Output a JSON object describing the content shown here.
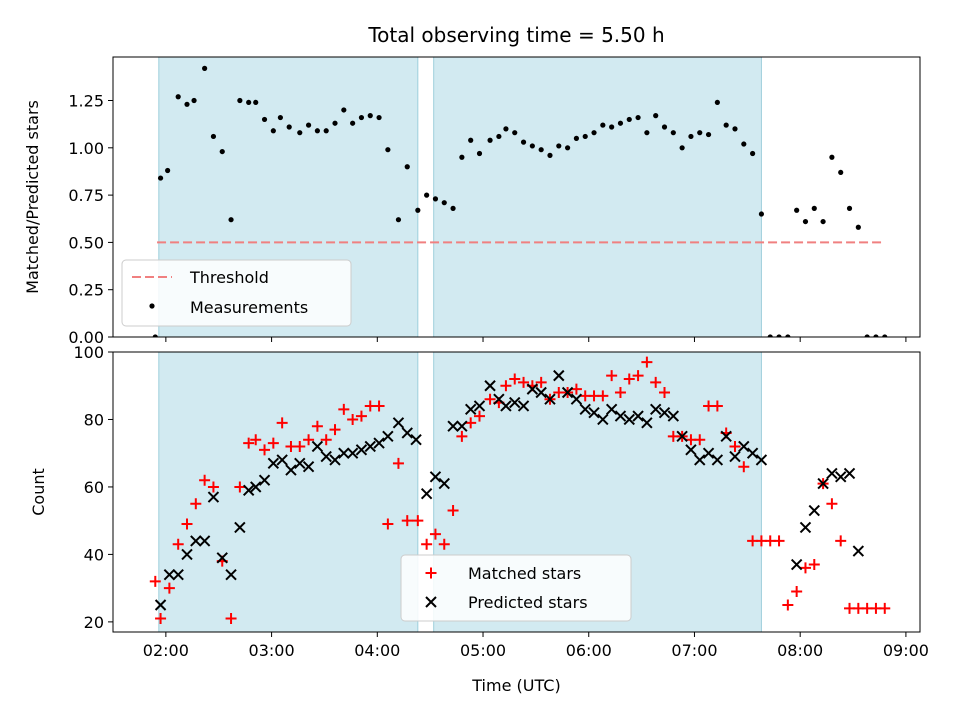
{
  "chart_data": [
    {
      "type": "scatter",
      "title": "Total observing time = 5.50 h",
      "xlabel": "",
      "ylabel": "Matched/Predicted stars",
      "ylim": [
        0,
        1.48
      ],
      "yticks": [
        "0.00",
        "0.25",
        "0.50",
        "0.75",
        "1.00",
        "1.25"
      ],
      "grid": false,
      "legend": {
        "placement": "lower-left",
        "entries": [
          "Threshold",
          "Measurements"
        ]
      },
      "shaded_intervals": [
        [
          "01:56",
          "04:23"
        ],
        [
          "04:32",
          "07:38"
        ]
      ],
      "threshold": {
        "name": "Threshold",
        "y": 0.5,
        "x_range": [
          "01:55",
          "08:47"
        ],
        "color": "#f08080",
        "style": "dashed"
      },
      "series": [
        {
          "name": "Measurements",
          "color": "#000000",
          "marker": "dot",
          "x": [
            "01:54",
            "01:57",
            "02:01",
            "02:07",
            "02:12",
            "02:16",
            "02:22",
            "02:27",
            "02:32",
            "02:37",
            "02:42",
            "02:47",
            "02:51",
            "02:56",
            "03:01",
            "03:05",
            "03:10",
            "03:16",
            "03:21",
            "03:26",
            "03:31",
            "03:36",
            "03:41",
            "03:46",
            "03:51",
            "03:56",
            "04:01",
            "04:06",
            "04:12",
            "04:17",
            "04:23",
            "04:28",
            "04:33",
            "04:38",
            "04:43",
            "04:48",
            "04:53",
            "04:58",
            "05:04",
            "05:09",
            "05:13",
            "05:18",
            "05:23",
            "05:28",
            "05:33",
            "05:38",
            "05:43",
            "05:48",
            "05:53",
            "05:58",
            "06:03",
            "06:08",
            "06:13",
            "06:18",
            "06:23",
            "06:28",
            "06:33",
            "06:38",
            "06:43",
            "06:48",
            "06:53",
            "06:58",
            "07:03",
            "07:08",
            "07:13",
            "07:18",
            "07:23",
            "07:28",
            "07:33",
            "07:38",
            "07:43",
            "07:48",
            "07:53",
            "07:58",
            "08:03",
            "08:08",
            "08:13",
            "08:18",
            "08:23",
            "08:28",
            "08:33",
            "08:38",
            "08:43",
            "08:48"
          ],
          "y": [
            0.0,
            0.84,
            0.88,
            1.27,
            1.23,
            1.25,
            1.42,
            1.06,
            0.98,
            0.62,
            1.25,
            1.24,
            1.24,
            1.15,
            1.09,
            1.16,
            1.11,
            1.08,
            1.12,
            1.09,
            1.09,
            1.13,
            1.2,
            1.13,
            1.16,
            1.17,
            1.16,
            0.99,
            0.62,
            0.9,
            0.67,
            0.75,
            0.73,
            0.71,
            0.68,
            0.95,
            1.04,
            0.97,
            1.04,
            1.06,
            1.1,
            1.08,
            1.03,
            1.01,
            0.99,
            0.96,
            1.01,
            1.0,
            1.05,
            1.06,
            1.08,
            1.12,
            1.11,
            1.13,
            1.15,
            1.16,
            1.08,
            1.17,
            1.11,
            1.08,
            1.0,
            1.06,
            1.08,
            1.07,
            1.24,
            1.12,
            1.1,
            1.02,
            0.97,
            0.65,
            0.0,
            0.0,
            0.0,
            0.67,
            0.61,
            0.68,
            0.61,
            0.95,
            0.87,
            0.68,
            0.58,
            0.0,
            0.0,
            0.0
          ]
        }
      ]
    },
    {
      "type": "scatter",
      "title": "",
      "xlabel": "Time (UTC)",
      "ylabel": "Count",
      "ylim": [
        17,
        100
      ],
      "yticks": [
        "20",
        "40",
        "60",
        "80",
        "100"
      ],
      "xticks": [
        "02:00",
        "03:00",
        "04:00",
        "05:00",
        "06:00",
        "07:00",
        "08:00",
        "09:00"
      ],
      "xlim": [
        "01:30",
        "09:08"
      ],
      "grid": false,
      "legend": {
        "placement": "lower-center",
        "entries": [
          "Matched stars",
          "Predicted stars"
        ]
      },
      "shaded_intervals": [
        [
          "01:56",
          "04:23"
        ],
        [
          "04:32",
          "07:38"
        ]
      ],
      "series": [
        {
          "name": "Matched stars",
          "color": "#ff0000",
          "marker": "plus",
          "x": [
            "01:54",
            "01:57",
            "02:02",
            "02:07",
            "02:12",
            "02:17",
            "02:22",
            "02:27",
            "02:32",
            "02:37",
            "02:42",
            "02:47",
            "02:51",
            "02:56",
            "03:01",
            "03:06",
            "03:11",
            "03:16",
            "03:21",
            "03:26",
            "03:31",
            "03:36",
            "03:41",
            "03:46",
            "03:51",
            "03:56",
            "04:01",
            "04:06",
            "04:12",
            "04:17",
            "04:23",
            "04:28",
            "04:33",
            "04:38",
            "04:43",
            "04:48",
            "04:53",
            "04:58",
            "05:04",
            "05:09",
            "05:13",
            "05:18",
            "05:23",
            "05:28",
            "05:33",
            "05:38",
            "05:43",
            "05:48",
            "05:53",
            "05:58",
            "06:03",
            "06:08",
            "06:13",
            "06:18",
            "06:23",
            "06:28",
            "06:33",
            "06:38",
            "06:43",
            "06:48",
            "06:53",
            "06:58",
            "07:03",
            "07:08",
            "07:13",
            "07:18",
            "07:23",
            "07:28",
            "07:33",
            "07:38",
            "07:43",
            "07:48",
            "07:53",
            "07:58",
            "08:03",
            "08:08",
            "08:13",
            "08:18",
            "08:23",
            "08:28",
            "08:33",
            "08:38",
            "08:43",
            "08:48"
          ],
          "y": [
            32,
            21,
            30,
            43,
            49,
            55,
            62,
            60,
            38,
            21,
            60,
            73,
            74,
            71,
            73,
            79,
            72,
            72,
            74,
            78,
            74,
            77,
            83,
            80,
            81,
            84,
            84,
            49,
            67,
            50,
            50,
            43,
            46,
            43,
            53,
            75,
            79,
            81,
            86,
            85,
            90,
            92,
            91,
            90,
            91,
            86,
            88,
            88,
            89,
            87,
            87,
            87,
            93,
            88,
            92,
            93,
            97,
            91,
            88,
            75,
            75,
            74,
            74,
            84,
            84,
            76,
            72,
            66,
            44,
            44,
            44,
            44,
            25,
            29,
            36,
            37,
            61,
            55,
            44,
            24,
            24,
            24,
            24,
            24
          ]
        },
        {
          "name": "Predicted stars",
          "color": "#000000",
          "marker": "x",
          "x": [
            "01:57",
            "02:02",
            "02:07",
            "02:12",
            "02:17",
            "02:22",
            "02:27",
            "02:32",
            "02:37",
            "02:42",
            "02:47",
            "02:51",
            "02:56",
            "03:01",
            "03:06",
            "03:11",
            "03:16",
            "03:21",
            "03:26",
            "03:31",
            "03:36",
            "03:41",
            "03:46",
            "03:51",
            "03:56",
            "04:01",
            "04:06",
            "04:12",
            "04:17",
            "04:22",
            "04:28",
            "04:33",
            "04:38",
            "04:43",
            "04:48",
            "04:53",
            "04:58",
            "05:04",
            "05:09",
            "05:13",
            "05:18",
            "05:23",
            "05:28",
            "05:33",
            "05:38",
            "05:43",
            "05:48",
            "05:53",
            "05:58",
            "06:03",
            "06:08",
            "06:13",
            "06:18",
            "06:23",
            "06:28",
            "06:33",
            "06:38",
            "06:43",
            "06:48",
            "06:53",
            "06:58",
            "07:03",
            "07:08",
            "07:13",
            "07:18",
            "07:23",
            "07:28",
            "07:33",
            "07:38",
            "07:58",
            "08:03",
            "08:08",
            "08:13",
            "08:18",
            "08:23",
            "08:28",
            "08:33"
          ],
          "y": [
            25,
            34,
            34,
            40,
            44,
            44,
            57,
            39,
            34,
            48,
            59,
            60,
            62,
            67,
            68,
            65,
            67,
            66,
            72,
            69,
            68,
            70,
            70,
            71,
            72,
            73,
            75,
            79,
            76,
            74,
            58,
            63,
            61,
            78,
            78,
            83,
            84,
            90,
            86,
            84,
            85,
            84,
            89,
            88,
            86,
            93,
            88,
            86,
            83,
            82,
            80,
            83,
            81,
            80,
            81,
            79,
            83,
            82,
            81,
            75,
            71,
            68,
            70,
            68,
            75,
            69,
            72,
            70,
            68,
            37,
            48,
            53,
            61,
            64,
            63,
            64,
            41
          ]
        }
      ]
    }
  ]
}
